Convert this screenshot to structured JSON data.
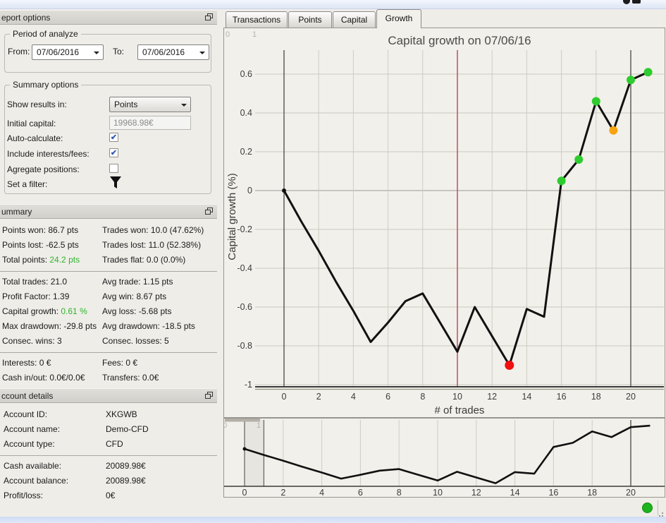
{
  "colors": {
    "accent_green": "#2db52d",
    "marker_green": "#2ecc2e",
    "marker_orange": "#f7a411",
    "marker_red": "#f01010",
    "vline_red": "#c0596b",
    "line_black": "#111111",
    "status_green": "#1db31d"
  },
  "report_options": {
    "title": "eport options",
    "period_group": "Period of analyze",
    "from_label": "From:",
    "from_value": "07/06/2016",
    "to_label": "To:",
    "to_value": "07/06/2016",
    "summary_group": "Summary options",
    "show_results_label": "Show results in:",
    "show_results_value": "Points",
    "initial_capital_label": "Initial capital:",
    "initial_capital_value": "19968.98€",
    "auto_calculate_label": "Auto-calculate:",
    "auto_calculate_checked": true,
    "include_interests_label": "Include interests/fees:",
    "include_interests_checked": true,
    "agregate_label": "Agregate positions:",
    "agregate_checked": false,
    "filter_label": "Set a filter:"
  },
  "summary": {
    "title": "ummary",
    "groups": [
      [
        {
          "left": "Points won: 86.7 pts",
          "right": "Trades won: 10.0 (47.62%)"
        },
        {
          "left": "Points lost: -62.5 pts",
          "right": "Trades lost: 11.0 (52.38%)"
        },
        {
          "left": "Total points: ",
          "left_colored": "24.2 pts",
          "right": "Trades flat: 0.0 (0.0%)"
        }
      ],
      [
        {
          "left": "Total trades: 21.0",
          "right": "Avg trade: 1.15 pts"
        },
        {
          "left": "Profit Factor: 1.39",
          "right": "Avg win: 8.67 pts"
        },
        {
          "left": "Capital growth: ",
          "left_colored": "0.61 %",
          "right": "Avg loss: -5.68 pts"
        },
        {
          "left": "Max drawdown: -29.8 pts",
          "right": "Avg drawdown: -18.5 pts"
        },
        {
          "left": "Consec. wins: 3",
          "right": "Consec. losses: 5"
        }
      ],
      [
        {
          "left": "Interests: 0 €",
          "right": "Fees: 0 €"
        },
        {
          "left": "Cash in/out: 0.0€/0.0€",
          "right": "Transfers: 0.0€"
        }
      ]
    ]
  },
  "account": {
    "title": "ccount details",
    "groups": [
      [
        {
          "label": "Account ID:",
          "value": "XKGWB"
        },
        {
          "label": "Account name:",
          "value": "Demo-CFD"
        },
        {
          "label": "Account type:",
          "value": "CFD"
        }
      ],
      [
        {
          "label": "Cash available:",
          "value": "20089.98€"
        },
        {
          "label": "Account balance:",
          "value": "20089.98€"
        },
        {
          "label": "Profit/loss:",
          "value": "0€"
        }
      ]
    ]
  },
  "tabs": [
    {
      "label": "Transactions",
      "active": false
    },
    {
      "label": "Points",
      "active": false
    },
    {
      "label": "Capital",
      "active": false
    },
    {
      "label": "Growth",
      "active": true
    }
  ],
  "chart_data": [
    {
      "type": "line",
      "role": "main",
      "title": "Capital growth on 07/06/16",
      "xlabel": "# of trades",
      "ylabel": "Capital growth (%)",
      "x": [
        0,
        1,
        2,
        3,
        4,
        5,
        6,
        7,
        8,
        9,
        10,
        11,
        12,
        13,
        14,
        15,
        16,
        17,
        18,
        19,
        20,
        21
      ],
      "values": [
        0,
        -0.16,
        -0.31,
        -0.47,
        -0.62,
        -0.78,
        -0.68,
        -0.57,
        -0.53,
        -0.68,
        -0.83,
        -0.6,
        -0.75,
        -0.9,
        -0.61,
        -0.65,
        0.05,
        0.16,
        0.46,
        0.31,
        0.57,
        0.61
      ],
      "ylim": [
        -1.01,
        0.72
      ],
      "yticks": [
        "0.6",
        "0.4",
        "0.2",
        "0",
        "-0.2",
        "-0.4",
        "-0.6",
        "-0.8",
        "-1"
      ],
      "ytick_values": [
        0.6,
        0.4,
        0.2,
        0,
        -0.2,
        -0.4,
        -0.6,
        -0.8,
        -1
      ],
      "xticks": [
        "0",
        "2",
        "4",
        "6",
        "8",
        "10",
        "12",
        "14",
        "16",
        "18",
        "20"
      ],
      "xtick_values": [
        0,
        2,
        4,
        6,
        8,
        10,
        12,
        14,
        16,
        18,
        20
      ],
      "grid": true,
      "red_vline_x": 10,
      "dark_vlines_x": [
        0,
        20
      ],
      "markers": [
        {
          "x": 0,
          "color": "#111111",
          "r": 3
        },
        {
          "x": 13,
          "color": "#f01010",
          "r": 6.5
        },
        {
          "x": 16,
          "color": "#2ecc2e",
          "r": 6
        },
        {
          "x": 17,
          "color": "#2ecc2e",
          "r": 6
        },
        {
          "x": 18,
          "color": "#2ecc2e",
          "r": 6
        },
        {
          "x": 19,
          "color": "#f7a411",
          "r": 6
        },
        {
          "x": 20,
          "color": "#2ecc2e",
          "r": 6
        },
        {
          "x": 21,
          "color": "#2ecc2e",
          "r": 6
        }
      ],
      "slider_labels": [
        "0",
        "1"
      ]
    },
    {
      "type": "line",
      "role": "overview",
      "x": [
        0,
        1,
        2,
        3,
        4,
        5,
        6,
        7,
        8,
        9,
        10,
        11,
        12,
        13,
        14,
        15,
        16,
        17,
        18,
        19,
        20,
        21
      ],
      "values": [
        0,
        -0.16,
        -0.31,
        -0.47,
        -0.62,
        -0.78,
        -0.68,
        -0.57,
        -0.53,
        -0.68,
        -0.83,
        -0.6,
        -0.75,
        -0.9,
        -0.61,
        -0.65,
        0.05,
        0.16,
        0.46,
        0.31,
        0.57,
        0.61
      ],
      "xticks": [
        "0",
        "2",
        "4",
        "6",
        "8",
        "10",
        "12",
        "14",
        "16",
        "18",
        "20"
      ],
      "xtick_values": [
        0,
        2,
        4,
        6,
        8,
        10,
        12,
        14,
        16,
        18,
        20
      ],
      "selection_range": [
        0,
        1
      ],
      "dark_vlines_x": [
        20
      ],
      "markers": [
        {
          "x": 0,
          "color": "#111111",
          "r": 2.5
        }
      ],
      "slider_labels": [
        "0",
        "1"
      ]
    }
  ],
  "status": {
    "connection": "connected"
  }
}
